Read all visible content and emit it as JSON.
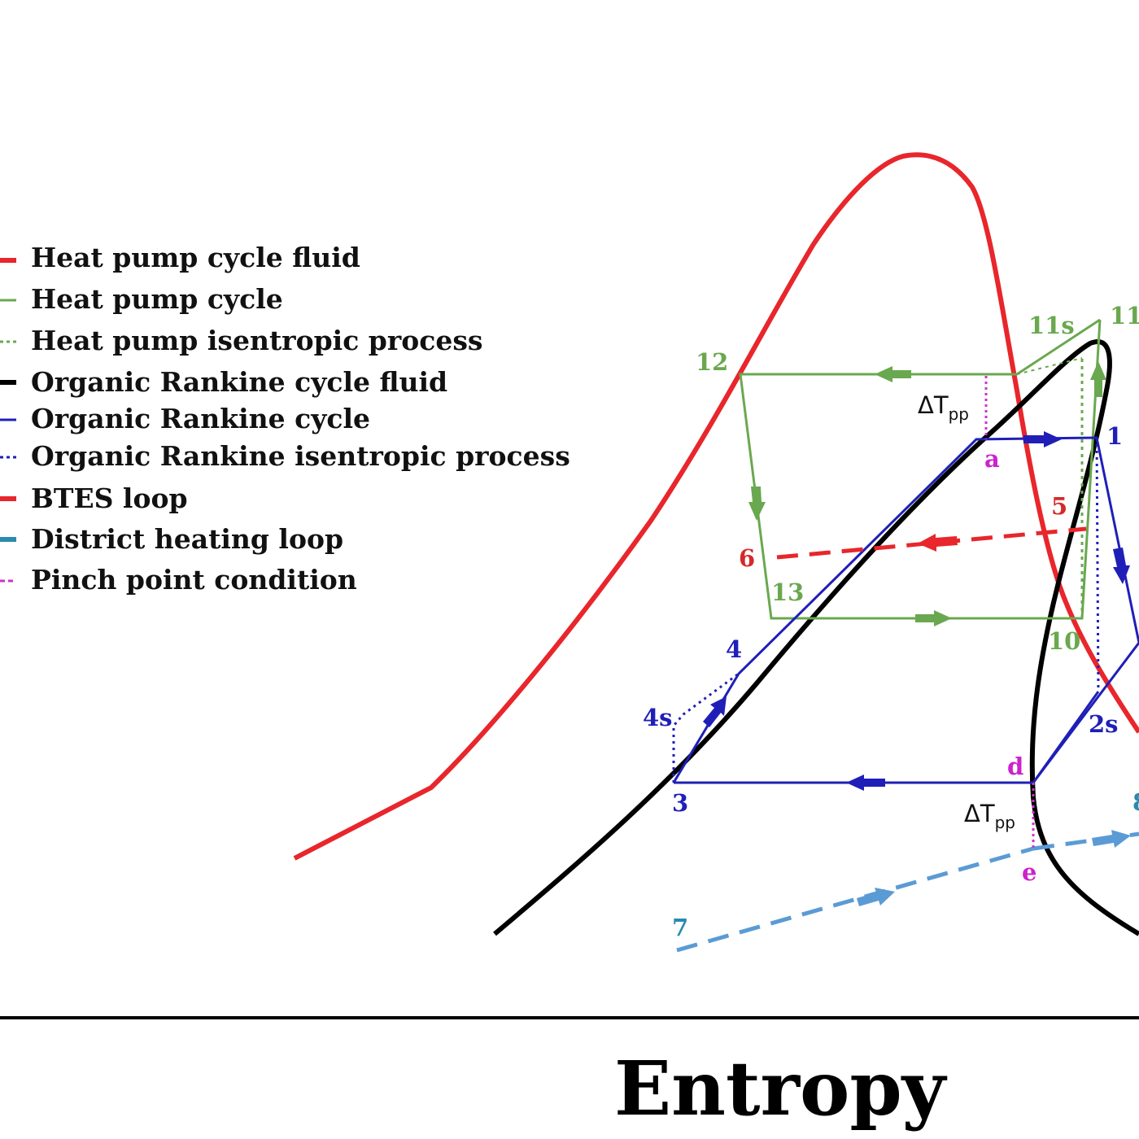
{
  "colors": {
    "hp_fluid": "#e8262b",
    "hp_cycle": "#6aa84f",
    "orc_fluid": "#000000",
    "orc_cycle": "#1f1fb8",
    "btes": "#e8262b",
    "district": "#5b9bd5",
    "pinch": "#cc33cc",
    "label_blue": "#1f1fb8",
    "label_green": "#6aa84f",
    "label_red": "#d42a2a",
    "label_magenta": "#cc22cc",
    "label_teal": "#2a8ab0"
  },
  "legend": [
    {
      "label": "Heat pump cycle fluid",
      "color": "#e8262b",
      "style": "solid",
      "icon": "red-solid-line-icon"
    },
    {
      "label": "Heat pump cycle",
      "color": "#6aa84f",
      "style": "solid",
      "icon": "green-solid-line-icon"
    },
    {
      "label": "Heat pump isentropic process",
      "color": "#6aa84f",
      "style": "dotted",
      "icon": "green-dotted-line-icon"
    },
    {
      "label": "Organic Rankine cycle fluid",
      "color": "#000000",
      "style": "solid",
      "icon": "black-solid-line-icon"
    },
    {
      "label": "Organic Rankine cycle",
      "color": "#1f1fb8",
      "style": "solid",
      "icon": "blue-solid-line-icon"
    },
    {
      "label": "Organic Rankine isentropic process",
      "color": "#1f1fb8",
      "style": "dotted",
      "icon": "blue-dotted-line-icon"
    },
    {
      "label": "BTES loop",
      "color": "#e8262b",
      "style": "dashed",
      "icon": "red-dashed-line-icon"
    },
    {
      "label": "District heating loop",
      "color": "#2a8ab0",
      "style": "dashed",
      "icon": "teal-dashed-line-icon"
    },
    {
      "label": "Pinch point condition",
      "color": "#cc33cc",
      "style": "dashed",
      "icon": "magenta-dashed-line-icon"
    }
  ],
  "points": {
    "p1": "1",
    "p2s": "2s",
    "p3": "3",
    "p4": "4",
    "p4s": "4s",
    "p5": "5",
    "p6": "6",
    "p7": "7",
    "p8": "8",
    "p10": "10",
    "p11": "11",
    "p11s": "11s",
    "p12": "12",
    "p13": "13",
    "pa": "a",
    "pd": "d",
    "pe": "e"
  },
  "pinch_labels": {
    "main": "ΔT",
    "sub": "pp"
  },
  "axis": {
    "xlabel": "Entropy"
  }
}
